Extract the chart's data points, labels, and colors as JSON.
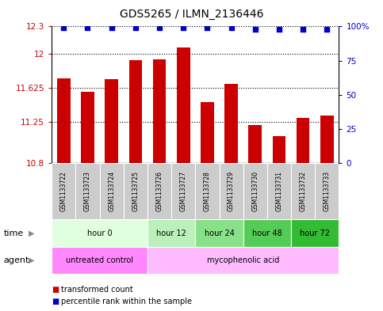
{
  "title": "GDS5265 / ILMN_2136446",
  "samples": [
    "GSM1133722",
    "GSM1133723",
    "GSM1133724",
    "GSM1133725",
    "GSM1133726",
    "GSM1133727",
    "GSM1133728",
    "GSM1133729",
    "GSM1133730",
    "GSM1133731",
    "GSM1133732",
    "GSM1133733"
  ],
  "bar_values": [
    11.73,
    11.58,
    11.72,
    11.93,
    11.94,
    12.07,
    11.47,
    11.67,
    11.22,
    11.1,
    11.3,
    11.32
  ],
  "percentile_values": [
    99,
    99,
    99,
    99,
    99,
    99,
    99,
    99,
    98,
    98,
    98,
    98
  ],
  "bar_color": "#cc0000",
  "percentile_color": "#0000cc",
  "ylim_left": [
    10.8,
    12.3
  ],
  "ylim_right": [
    0,
    100
  ],
  "yticks_left": [
    10.8,
    11.25,
    11.625,
    12.0,
    12.3
  ],
  "yticks_right": [
    0,
    25,
    50,
    75,
    100
  ],
  "ytick_labels_left": [
    "10.8",
    "11.25",
    "11.625",
    "12",
    "12.3"
  ],
  "ytick_labels_right": [
    "0",
    "25",
    "50",
    "75",
    "100%"
  ],
  "dotted_lines": [
    11.25,
    11.625,
    12.0
  ],
  "time_groups": [
    {
      "label": "hour 0",
      "start": 0,
      "end": 4,
      "color": "#dfffdf"
    },
    {
      "label": "hour 12",
      "start": 4,
      "end": 6,
      "color": "#bbf0bb"
    },
    {
      "label": "hour 24",
      "start": 6,
      "end": 8,
      "color": "#88e088"
    },
    {
      "label": "hour 48",
      "start": 8,
      "end": 10,
      "color": "#55cc55"
    },
    {
      "label": "hour 72",
      "start": 10,
      "end": 12,
      "color": "#33bb33"
    }
  ],
  "agent_groups": [
    {
      "label": "untreated control",
      "start": 0,
      "end": 4,
      "color": "#ff88ff"
    },
    {
      "label": "mycophenolic acid",
      "start": 4,
      "end": 12,
      "color": "#ffbbff"
    }
  ],
  "legend_items": [
    {
      "label": "transformed count",
      "color": "#cc0000"
    },
    {
      "label": "percentile rank within the sample",
      "color": "#0000cc"
    }
  ],
  "background_color": "#ffffff",
  "bar_width": 0.55
}
